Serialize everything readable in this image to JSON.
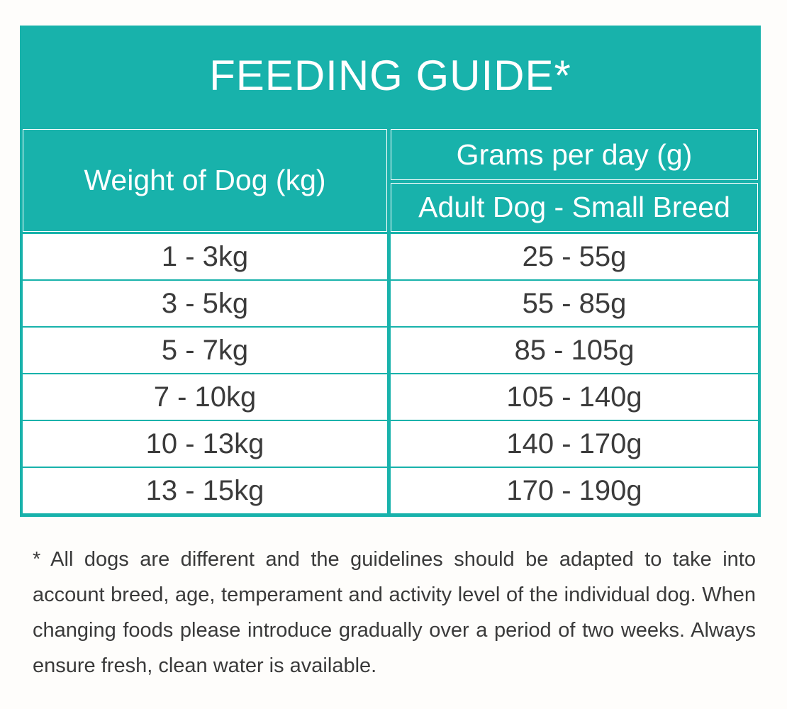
{
  "title": "FEEDING GUIDE*",
  "table": {
    "col_weight_header": "Weight of Dog (kg)",
    "col_grams_header": "Grams per day (g)",
    "col_grams_subheader": "Adult Dog - Small Breed",
    "rows": [
      {
        "weight": "1 - 3kg",
        "grams": "25 - 55g"
      },
      {
        "weight": "3 - 5kg",
        "grams": "55 - 85g"
      },
      {
        "weight": "5 - 7kg",
        "grams": "85 - 105g"
      },
      {
        "weight": "7 - 10kg",
        "grams": "105 - 140g"
      },
      {
        "weight": "10 - 13kg",
        "grams": "140 - 170g"
      },
      {
        "weight": "13 - 15kg",
        "grams": "170 - 190g"
      }
    ]
  },
  "footnote": "* All dogs are different and the guidelines should be adapted to take into account breed, age, temperament and activity level of the individual dog. When changing foods please introduce gradually over a period of two weeks. Always ensure fresh, clean water is available.",
  "colors": {
    "teal": "#18b2ab",
    "white": "#ffffff",
    "text": "#3b3b3b"
  }
}
